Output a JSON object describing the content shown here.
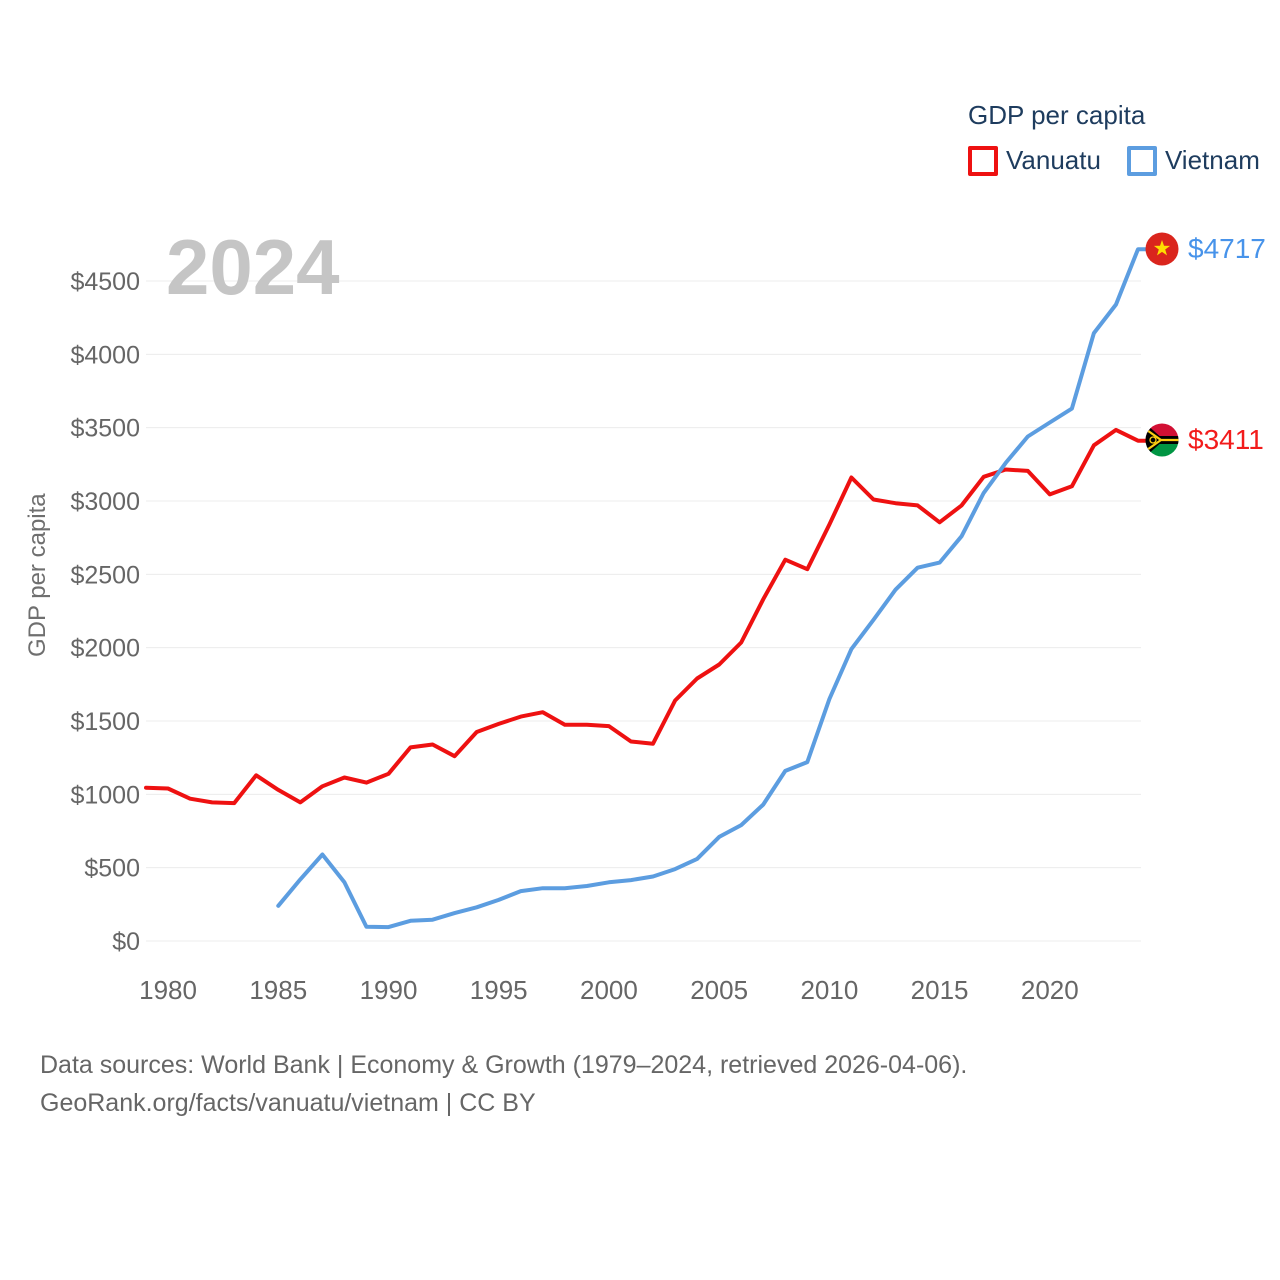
{
  "watermark": "2024",
  "legend": {
    "title": "GDP per capita",
    "items": [
      {
        "label": "Vanuatu",
        "color": "#ee1111"
      },
      {
        "label": "Vietnam",
        "color": "#5c9de0"
      }
    ]
  },
  "end_labels": {
    "vietnam": {
      "text": "$4717",
      "color": "#4793ea",
      "flag": "vietnam-flag"
    },
    "vanuatu": {
      "text": "$3411",
      "color": "#f21b1b",
      "flag": "vanuatu-flag"
    }
  },
  "footer": {
    "line1": "Data sources: World Bank | Economy & Growth (1979–2024, retrieved 2026-04-06).",
    "line2": "GeoRank.org/facts/vanuatu/vietnam | CC BY"
  },
  "chart_data": {
    "type": "line",
    "title": "GDP per capita",
    "ylabel": "GDP per capita",
    "xlim": [
      1979,
      2024
    ],
    "ylim": [
      0,
      4500
    ],
    "ytick_step": 500,
    "ytick_prefix": "$",
    "xticks": [
      1980,
      1985,
      1990,
      1995,
      2000,
      2005,
      2010,
      2015,
      2020
    ],
    "grid": true,
    "legend_position": "top-right",
    "series": [
      {
        "name": "Vanuatu",
        "color": "#ee1111",
        "end_label": "$3411",
        "x": [
          1979,
          1980,
          1981,
          1982,
          1983,
          1984,
          1985,
          1986,
          1987,
          1988,
          1989,
          1990,
          1991,
          1992,
          1993,
          1994,
          1995,
          1996,
          1997,
          1998,
          1999,
          2000,
          2001,
          2002,
          2003,
          2004,
          2005,
          2006,
          2007,
          2008,
          2009,
          2010,
          2011,
          2012,
          2013,
          2014,
          2015,
          2016,
          2017,
          2018,
          2019,
          2020,
          2021,
          2022,
          2023,
          2024
        ],
        "values": [
          1045,
          1040,
          970,
          945,
          940,
          1130,
          1030,
          945,
          1055,
          1115,
          1080,
          1140,
          1320,
          1340,
          1260,
          1425,
          1480,
          1530,
          1560,
          1475,
          1475,
          1465,
          1360,
          1345,
          1640,
          1790,
          1885,
          2035,
          2330,
          2600,
          2535,
          2840,
          3160,
          3010,
          2985,
          2970,
          2855,
          2970,
          3165,
          3215,
          3205,
          3045,
          3100,
          3380,
          3485,
          3411
        ]
      },
      {
        "name": "Vietnam",
        "color": "#5c9de0",
        "end_label": "$4717",
        "x": [
          1985,
          1986,
          1987,
          1988,
          1989,
          1990,
          1991,
          1992,
          1993,
          1994,
          1995,
          1996,
          1997,
          1998,
          1999,
          2000,
          2001,
          2002,
          2003,
          2004,
          2005,
          2006,
          2007,
          2008,
          2009,
          2010,
          2011,
          2012,
          2013,
          2014,
          2015,
          2016,
          2017,
          2018,
          2019,
          2020,
          2021,
          2022,
          2023,
          2024
        ],
        "values": [
          240,
          420,
          590,
          400,
          97,
          95,
          138,
          145,
          190,
          230,
          280,
          340,
          360,
          360,
          375,
          400,
          415,
          440,
          490,
          560,
          710,
          790,
          930,
          1160,
          1220,
          1650,
          1990,
          2190,
          2395,
          2545,
          2580,
          2760,
          3055,
          3260,
          3440,
          3535,
          3630,
          4145,
          4340,
          4717
        ]
      }
    ]
  }
}
